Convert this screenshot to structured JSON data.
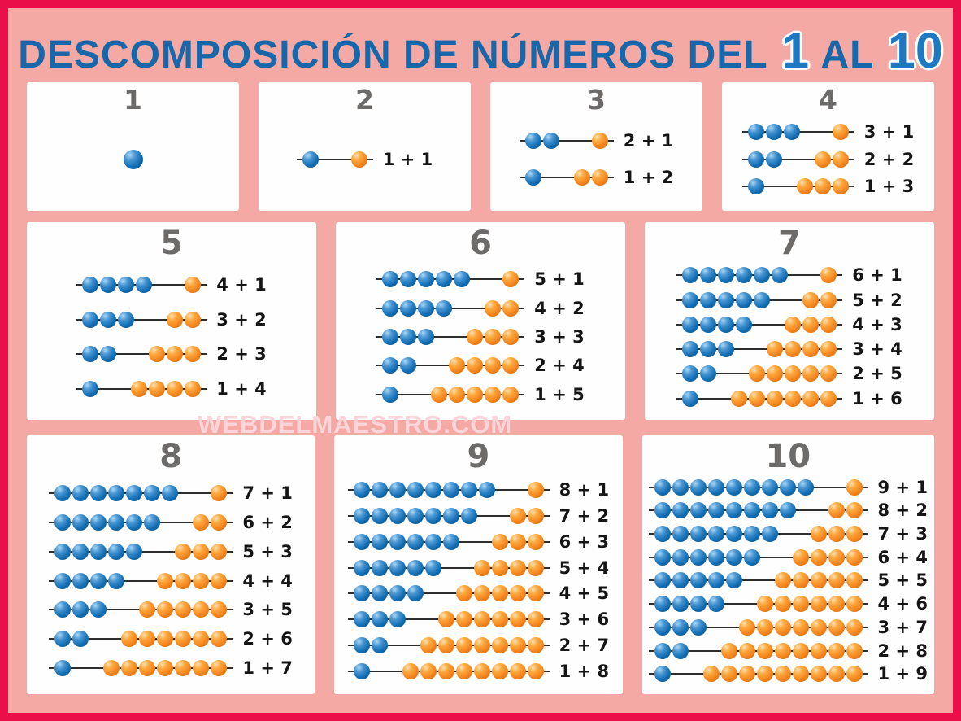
{
  "title": {
    "prefix": "DESCOMPOSICIÓN DE NÚMEROS DEL",
    "range_start": "1",
    "connector": "AL",
    "range_end": "10"
  },
  "watermark": "WEBDELMAESTRO.COM",
  "colors": {
    "frame": "#ea0e49",
    "background": "#f5a9a4",
    "card": "#fefefe",
    "title_blue": "#1767aa",
    "number_blue": "#1d79c2",
    "heading_gray": "#6d6a6a",
    "label_black": "#151515",
    "rod_line": "#2e2e2e",
    "bead_blue": "#1470b6",
    "bead_orange": "#f6861f",
    "watermark_pink": "#fbd5d8"
  },
  "layout": [
    [
      0,
      1,
      2,
      3
    ],
    [
      4,
      5,
      6
    ],
    [
      7,
      8,
      9
    ]
  ],
  "cards": [
    {
      "number": "1",
      "rows": []
    },
    {
      "number": "2",
      "rows": [
        {
          "blue": 1,
          "orange": 1,
          "label": "1 + 1"
        }
      ]
    },
    {
      "number": "3",
      "rows": [
        {
          "blue": 2,
          "orange": 1,
          "label": "2 + 1"
        },
        {
          "blue": 1,
          "orange": 2,
          "label": "1 + 2"
        }
      ]
    },
    {
      "number": "4",
      "rows": [
        {
          "blue": 3,
          "orange": 1,
          "label": "3 + 1"
        },
        {
          "blue": 2,
          "orange": 2,
          "label": "2 + 2"
        },
        {
          "blue": 1,
          "orange": 3,
          "label": "1 + 3"
        }
      ]
    },
    {
      "number": "5",
      "rows": [
        {
          "blue": 4,
          "orange": 1,
          "label": "4 + 1"
        },
        {
          "blue": 3,
          "orange": 2,
          "label": "3 + 2"
        },
        {
          "blue": 2,
          "orange": 3,
          "label": "2 + 3"
        },
        {
          "blue": 1,
          "orange": 4,
          "label": "1 + 4"
        }
      ]
    },
    {
      "number": "6",
      "rows": [
        {
          "blue": 5,
          "orange": 1,
          "label": "5 + 1"
        },
        {
          "blue": 4,
          "orange": 2,
          "label": "4 + 2"
        },
        {
          "blue": 3,
          "orange": 3,
          "label": "3 + 3"
        },
        {
          "blue": 2,
          "orange": 4,
          "label": "2 + 4"
        },
        {
          "blue": 1,
          "orange": 5,
          "label": "1 + 5"
        }
      ]
    },
    {
      "number": "7",
      "rows": [
        {
          "blue": 6,
          "orange": 1,
          "label": "6 + 1"
        },
        {
          "blue": 5,
          "orange": 2,
          "label": "5 + 2"
        },
        {
          "blue": 4,
          "orange": 3,
          "label": "4 + 3"
        },
        {
          "blue": 3,
          "orange": 4,
          "label": "3 + 4"
        },
        {
          "blue": 2,
          "orange": 5,
          "label": "2 + 5"
        },
        {
          "blue": 1,
          "orange": 6,
          "label": "1 + 6"
        }
      ]
    },
    {
      "number": "8",
      "rows": [
        {
          "blue": 7,
          "orange": 1,
          "label": "7 + 1"
        },
        {
          "blue": 6,
          "orange": 2,
          "label": "6 + 2"
        },
        {
          "blue": 5,
          "orange": 3,
          "label": "5 + 3"
        },
        {
          "blue": 4,
          "orange": 4,
          "label": "4 + 4"
        },
        {
          "blue": 3,
          "orange": 5,
          "label": "3 + 5"
        },
        {
          "blue": 2,
          "orange": 6,
          "label": "2 + 6"
        },
        {
          "blue": 1,
          "orange": 7,
          "label": "1 + 7"
        }
      ]
    },
    {
      "number": "9",
      "rows": [
        {
          "blue": 8,
          "orange": 1,
          "label": "8 + 1"
        },
        {
          "blue": 7,
          "orange": 2,
          "label": "7 + 2"
        },
        {
          "blue": 6,
          "orange": 3,
          "label": "6 + 3"
        },
        {
          "blue": 5,
          "orange": 4,
          "label": "5 + 4"
        },
        {
          "blue": 4,
          "orange": 5,
          "label": "4 + 5"
        },
        {
          "blue": 3,
          "orange": 6,
          "label": "3 + 6"
        },
        {
          "blue": 2,
          "orange": 7,
          "label": "2 + 7"
        },
        {
          "blue": 1,
          "orange": 8,
          "label": "1 + 8"
        }
      ]
    },
    {
      "number": "10",
      "rows": [
        {
          "blue": 9,
          "orange": 1,
          "label": "9 + 1"
        },
        {
          "blue": 8,
          "orange": 2,
          "label": "8 + 2"
        },
        {
          "blue": 7,
          "orange": 3,
          "label": "7 + 3"
        },
        {
          "blue": 6,
          "orange": 4,
          "label": "6 + 4"
        },
        {
          "blue": 5,
          "orange": 5,
          "label": "5 + 5"
        },
        {
          "blue": 4,
          "orange": 6,
          "label": "4 + 6"
        },
        {
          "blue": 3,
          "orange": 7,
          "label": "3 + 7"
        },
        {
          "blue": 2,
          "orange": 8,
          "label": "2 + 8"
        },
        {
          "blue": 1,
          "orange": 9,
          "label": "1 + 9"
        }
      ]
    }
  ]
}
